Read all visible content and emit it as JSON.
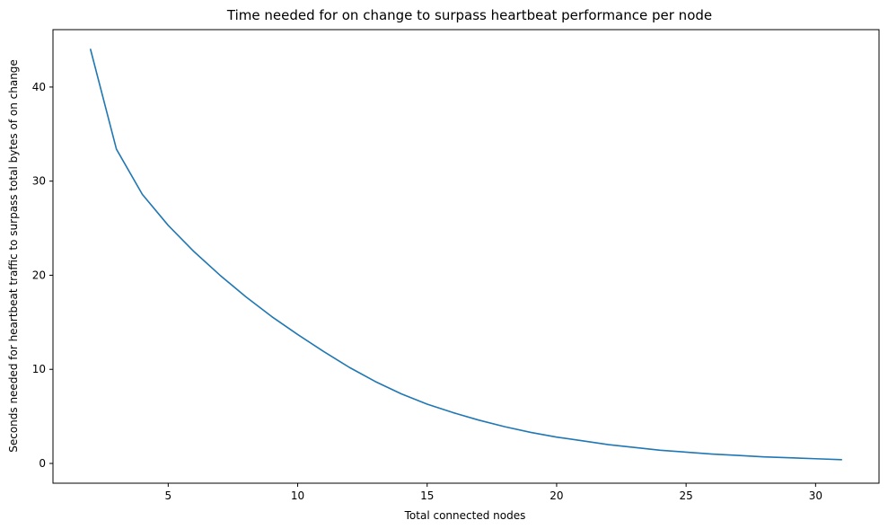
{
  "chart_data": {
    "type": "line",
    "title": "Time needed for on change to surpass heartbeat performance per node",
    "xlabel": "Total connected nodes",
    "ylabel": "Seconds needed for heartbeat traffic to surpass total bytes of on change",
    "xlim": [
      0.55,
      32.45
    ],
    "ylim": [
      -2.1,
      46.1
    ],
    "xticks": [
      5,
      10,
      15,
      20,
      25,
      30
    ],
    "yticks": [
      0,
      10,
      20,
      30,
      40
    ],
    "grid": false,
    "series": [
      {
        "color": "#1f77b4",
        "x": [
          2,
          3,
          4,
          5,
          6,
          7,
          8,
          9,
          10,
          11,
          12,
          13,
          14,
          15,
          16,
          17,
          18,
          19,
          20,
          21,
          22,
          23,
          24,
          25,
          26,
          27,
          28,
          29,
          30,
          31
        ],
        "y": [
          44.0,
          33.4,
          28.6,
          25.3,
          22.5,
          20.0,
          17.7,
          15.6,
          13.7,
          11.9,
          10.2,
          8.7,
          7.4,
          6.3,
          5.4,
          4.6,
          3.9,
          3.3,
          2.8,
          2.4,
          2.0,
          1.7,
          1.4,
          1.2,
          1.0,
          0.85,
          0.7,
          0.6,
          0.5,
          0.4
        ]
      }
    ]
  }
}
